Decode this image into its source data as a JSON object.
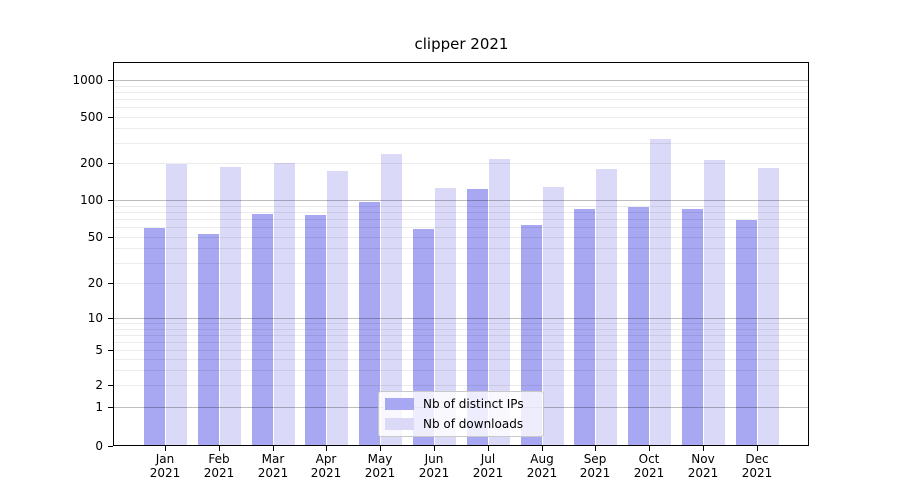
{
  "title": "clipper 2021",
  "legend": {
    "items": [
      {
        "label": "Nb of distinct IPs",
        "color": "#a7a7f2"
      },
      {
        "label": "Nb of downloads",
        "color": "#dadaf8"
      }
    ]
  },
  "y_axis": {
    "tick_values": [
      1000,
      500,
      200,
      100,
      50,
      20,
      10,
      5,
      2,
      1,
      0
    ],
    "tick_labels": [
      "1000",
      "500",
      "200",
      "100",
      "50",
      "20",
      "10",
      "5",
      "2",
      "1",
      "0"
    ]
  },
  "x_axis": {
    "months": [
      "Jan",
      "Feb",
      "Mar",
      "Apr",
      "May",
      "Jun",
      "Jul",
      "Aug",
      "Sep",
      "Oct",
      "Nov",
      "Dec"
    ],
    "year": "2021"
  },
  "chart_data": {
    "type": "bar",
    "title": "clipper 2021",
    "xlabel": "",
    "ylabel": "",
    "yscale": "symlog",
    "y_ticks": [
      0,
      1,
      2,
      5,
      10,
      20,
      50,
      100,
      200,
      500,
      1000
    ],
    "ylim": [
      0,
      1500
    ],
    "grid": "horizontal, major dark at powers of 10, minor light, drawn above bars",
    "legend_position": "lower center",
    "categories": [
      "Jan 2021",
      "Feb 2021",
      "Mar 2021",
      "Apr 2021",
      "May 2021",
      "Jun 2021",
      "Jul 2021",
      "Aug 2021",
      "Sep 2021",
      "Oct 2021",
      "Nov 2021",
      "Dec 2021"
    ],
    "series": [
      {
        "name": "Nb of distinct IPs",
        "color": "#a7a7f2",
        "values": [
          59,
          53,
          77,
          76,
          96,
          58,
          123,
          62,
          84,
          87,
          84,
          69
        ]
      },
      {
        "name": "Nb of downloads",
        "color": "#dadaf8",
        "values": [
          197,
          186,
          201,
          172,
          241,
          125,
          216,
          129,
          181,
          322,
          215,
          182
        ]
      }
    ]
  }
}
